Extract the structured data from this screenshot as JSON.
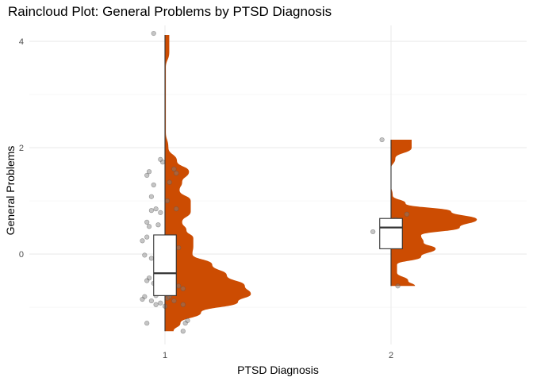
{
  "chart_data": {
    "type": "raincloud",
    "title": "Raincloud Plot: General Problems by PTSD Diagnosis",
    "xlabel": "PTSD Diagnosis",
    "ylabel": "General Problems",
    "categories": [
      "1",
      "2"
    ],
    "ylim": [
      -1.7,
      4.3
    ],
    "yticks": [
      0,
      2,
      4
    ],
    "grid": true,
    "legend": "none",
    "fill_color": "#cc4c02",
    "point_color": "#7f7f7f",
    "groups": [
      {
        "category": "1",
        "box": {
          "q1": -0.78,
          "median": -0.36,
          "q3": 0.36,
          "whisker_low": -1.45,
          "whisker_high": 4.12
        },
        "density_max_value": -0.75,
        "density": [
          {
            "y": -1.45,
            "d": 0.1
          },
          {
            "y": -1.3,
            "d": 0.18
          },
          {
            "y": -1.1,
            "d": 0.42
          },
          {
            "y": -0.9,
            "d": 0.85
          },
          {
            "y": -0.75,
            "d": 1.0
          },
          {
            "y": -0.6,
            "d": 0.93
          },
          {
            "y": -0.4,
            "d": 0.72
          },
          {
            "y": -0.2,
            "d": 0.55
          },
          {
            "y": 0.0,
            "d": 0.32
          },
          {
            "y": 0.15,
            "d": 0.33
          },
          {
            "y": 0.3,
            "d": 0.33
          },
          {
            "y": 0.45,
            "d": 0.25
          },
          {
            "y": 0.6,
            "d": 0.2
          },
          {
            "y": 0.8,
            "d": 0.3
          },
          {
            "y": 1.0,
            "d": 0.3
          },
          {
            "y": 1.2,
            "d": 0.17
          },
          {
            "y": 1.35,
            "d": 0.2
          },
          {
            "y": 1.55,
            "d": 0.28
          },
          {
            "y": 1.75,
            "d": 0.14
          },
          {
            "y": 2.0,
            "d": 0.04
          },
          {
            "y": 2.3,
            "d": 0.01
          },
          {
            "y": 3.5,
            "d": 0.01
          },
          {
            "y": 3.8,
            "d": 0.05
          },
          {
            "y": 4.12,
            "d": 0.05
          }
        ],
        "points": [
          {
            "x": 0.95,
            "y": 4.15
          },
          {
            "x": 0.98,
            "y": 1.78
          },
          {
            "x": 0.99,
            "y": 1.73
          },
          {
            "x": 0.93,
            "y": 1.55
          },
          {
            "x": 1.04,
            "y": 1.6
          },
          {
            "x": 1.05,
            "y": 1.52
          },
          {
            "x": 1.02,
            "y": 1.35
          },
          {
            "x": 0.92,
            "y": 1.48
          },
          {
            "x": 0.95,
            "y": 1.3
          },
          {
            "x": 0.94,
            "y": 1.08
          },
          {
            "x": 1.01,
            "y": 1.0
          },
          {
            "x": 0.96,
            "y": 0.85
          },
          {
            "x": 0.94,
            "y": 0.82
          },
          {
            "x": 0.98,
            "y": 0.78
          },
          {
            "x": 1.05,
            "y": 0.85
          },
          {
            "x": 0.92,
            "y": 0.6
          },
          {
            "x": 0.93,
            "y": 0.52
          },
          {
            "x": 0.97,
            "y": 0.55
          },
          {
            "x": 0.92,
            "y": 0.32
          },
          {
            "x": 0.9,
            "y": 0.25
          },
          {
            "x": 0.99,
            "y": 0.12
          },
          {
            "x": 1.0,
            "y": 0.13
          },
          {
            "x": 1.01,
            "y": 0.05
          },
          {
            "x": 1.06,
            "y": 0.12
          },
          {
            "x": 0.91,
            "y": -0.02
          },
          {
            "x": 0.94,
            "y": -0.08
          },
          {
            "x": 1.02,
            "y": -0.2
          },
          {
            "x": 0.96,
            "y": -0.25
          },
          {
            "x": 0.98,
            "y": -0.28
          },
          {
            "x": 1.01,
            "y": -0.3
          },
          {
            "x": 0.97,
            "y": -0.42
          },
          {
            "x": 0.93,
            "y": -0.45
          },
          {
            "x": 0.92,
            "y": -0.5
          },
          {
            "x": 0.95,
            "y": -0.55
          },
          {
            "x": 1.06,
            "y": -0.6
          },
          {
            "x": 1.08,
            "y": -0.65
          },
          {
            "x": 0.99,
            "y": -0.72
          },
          {
            "x": 0.96,
            "y": -0.78
          },
          {
            "x": 0.91,
            "y": -0.8
          },
          {
            "x": 0.9,
            "y": -0.85
          },
          {
            "x": 1.01,
            "y": -0.83
          },
          {
            "x": 1.02,
            "y": -0.8
          },
          {
            "x": 0.94,
            "y": -0.88
          },
          {
            "x": 0.98,
            "y": -0.92
          },
          {
            "x": 0.96,
            "y": -0.95
          },
          {
            "x": 1.04,
            "y": -0.88
          },
          {
            "x": 1.08,
            "y": -0.95
          },
          {
            "x": 1.1,
            "y": -1.25
          },
          {
            "x": 1.09,
            "y": -1.3
          },
          {
            "x": 0.92,
            "y": -1.3
          },
          {
            "x": 1.08,
            "y": -1.45
          },
          {
            "x": 1.0,
            "y": -0.98
          }
        ]
      },
      {
        "category": "2",
        "box": {
          "q1": 0.1,
          "median": 0.5,
          "q3": 0.67,
          "whisker_low": -0.6,
          "whisker_high": 2.15
        },
        "density_max_value": 0.65,
        "density": [
          {
            "y": -0.6,
            "d": 0.28
          },
          {
            "y": -0.5,
            "d": 0.2
          },
          {
            "y": -0.35,
            "d": 0.07
          },
          {
            "y": -0.2,
            "d": 0.07
          },
          {
            "y": -0.05,
            "d": 0.35
          },
          {
            "y": 0.1,
            "d": 0.52
          },
          {
            "y": 0.22,
            "d": 0.38
          },
          {
            "y": 0.35,
            "d": 0.35
          },
          {
            "y": 0.5,
            "d": 0.8
          },
          {
            "y": 0.65,
            "d": 1.0
          },
          {
            "y": 0.8,
            "d": 0.7
          },
          {
            "y": 0.95,
            "d": 0.17
          },
          {
            "y": 1.1,
            "d": 0.02
          },
          {
            "y": 1.3,
            "d": 0.0
          },
          {
            "y": 1.6,
            "d": 0.0
          },
          {
            "y": 1.8,
            "d": 0.05
          },
          {
            "y": 2.0,
            "d": 0.24
          },
          {
            "y": 2.15,
            "d": 0.24
          }
        ],
        "points": [
          {
            "x": 1.96,
            "y": 2.15
          },
          {
            "x": 1.92,
            "y": 0.42
          },
          {
            "x": 1.97,
            "y": 0.53
          },
          {
            "x": 1.98,
            "y": 0.15
          },
          {
            "x": 2.02,
            "y": 0.65
          },
          {
            "x": 2.07,
            "y": 0.75
          },
          {
            "x": 2.03,
            "y": -0.6
          }
        ]
      }
    ]
  }
}
